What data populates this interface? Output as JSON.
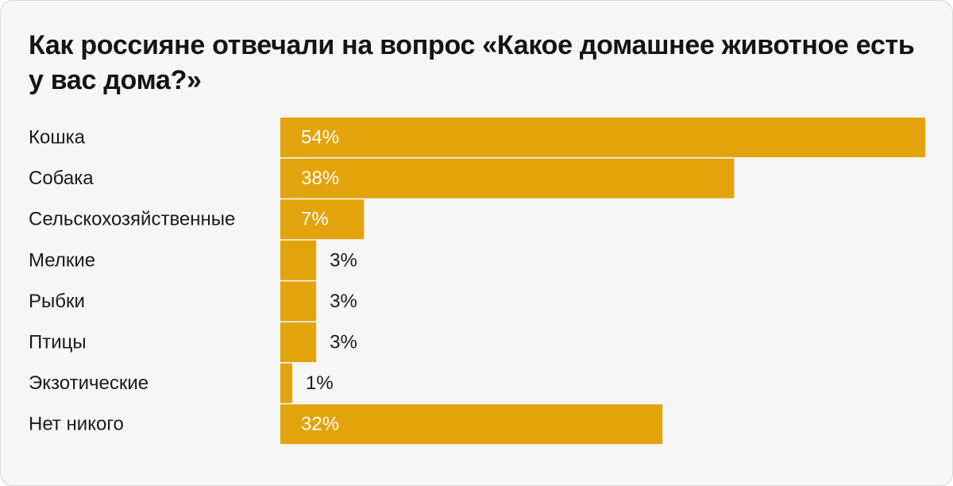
{
  "chart_data": {
    "type": "bar",
    "orientation": "horizontal",
    "title": "Как россияне отвечали на вопрос «Какое домашнее животное есть у вас дома?»",
    "categories": [
      "Кошка",
      "Собака",
      "Сельскохозяйственные",
      "Мелкие",
      "Рыбки",
      "Птицы",
      "Экзотические",
      "Нет никого"
    ],
    "values": [
      54,
      38,
      7,
      3,
      3,
      3,
      1,
      32
    ],
    "value_labels": [
      "54%",
      "38%",
      "7%",
      "3%",
      "3%",
      "3%",
      "1%",
      "32%"
    ],
    "unit": "%",
    "xlim": [
      0,
      54
    ],
    "grid": false,
    "legend": "none"
  },
  "colors": {
    "bar": "#e3a30b",
    "background": "#f6f6f6",
    "label_inside": "#ffffff",
    "label_outside": "#1a1a1a"
  }
}
